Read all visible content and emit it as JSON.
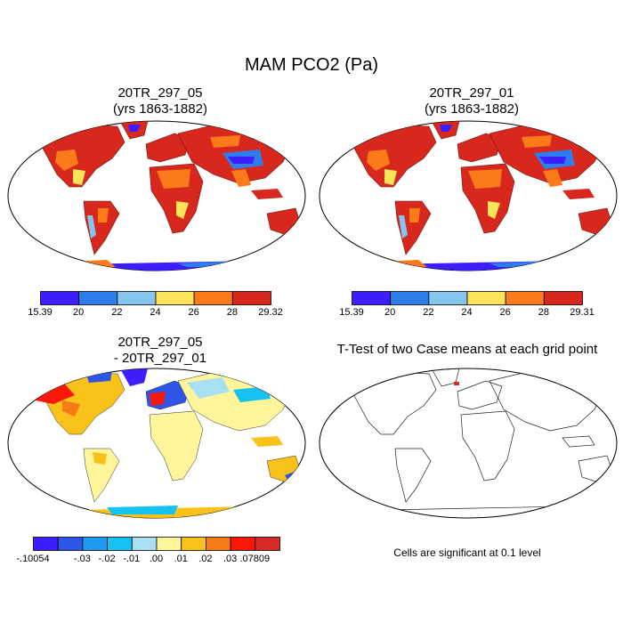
{
  "title": "MAM PCO2 (Pa)",
  "panels": [
    {
      "id": "p1",
      "title_line1": "20TR_297_05",
      "title_line2": "(yrs 1863-1882)",
      "colorbar": {
        "colors": [
          "#3c1eff",
          "#2f7dea",
          "#84c6ee",
          "#fde35a",
          "#fb7a1a",
          "#d8281e"
        ],
        "labels": [
          "15.39",
          "20",
          "22",
          "24",
          "26",
          "28",
          "29.32"
        ]
      }
    },
    {
      "id": "p2",
      "title_line1": "20TR_297_01",
      "title_line2": "(yrs 1863-1882)",
      "colorbar": {
        "colors": [
          "#3c1eff",
          "#2f7dea",
          "#84c6ee",
          "#fde35a",
          "#fb7a1a",
          "#d8281e"
        ],
        "labels": [
          "15.39",
          "20",
          "22",
          "24",
          "26",
          "28",
          "29.31"
        ]
      }
    },
    {
      "id": "p3",
      "title_line1": "20TR_297_05",
      "title_line2": "- 20TR_297_01",
      "colorbar": {
        "colors": [
          "#3c1eff",
          "#2d56e8",
          "#1f9af0",
          "#16c2f2",
          "#a8dff3",
          "#fff59a",
          "#f8c21a",
          "#f77b14",
          "#fb1808",
          "#d92a28"
        ],
        "labels": [
          "-.10054",
          "-.03",
          "-.02",
          "-.01",
          ".00",
          ".01",
          ".02",
          ".03",
          ".07809"
        ]
      }
    },
    {
      "id": "p4",
      "title_line1": "T-Test of two Case means at each grid point",
      "footnote": "Cells are significant at 0.1 level"
    }
  ]
}
